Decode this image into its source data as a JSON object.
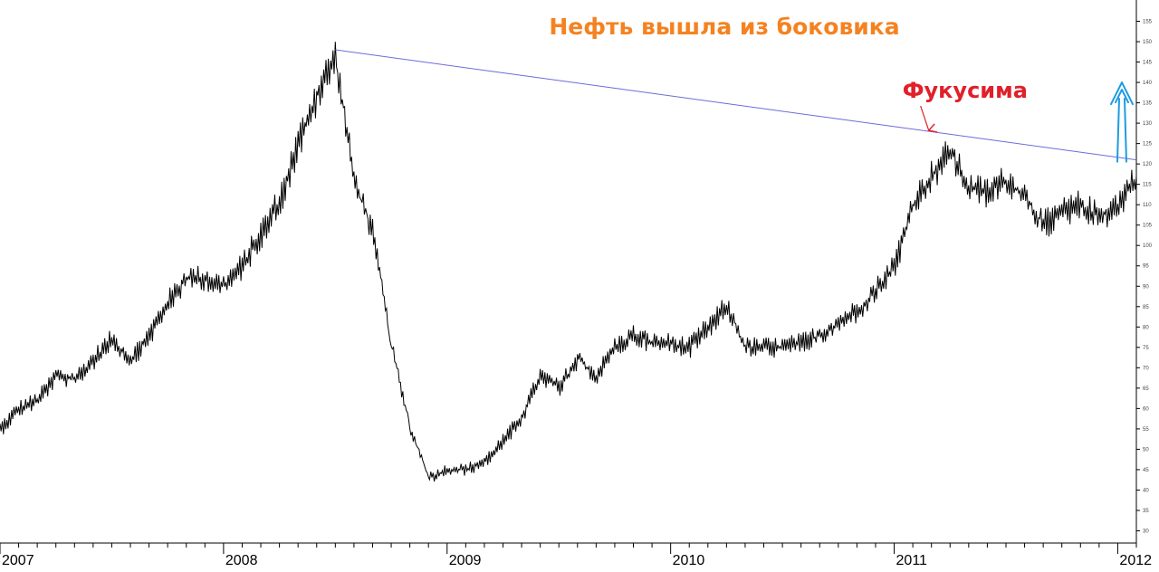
{
  "chart_data": {
    "type": "line",
    "title": "Нефть вышла из боковика",
    "annotations": [
      {
        "text": "Фукусима",
        "x": "2011-03",
        "y": 126
      }
    ],
    "xlabel": "",
    "ylabel": "",
    "x_tick_labels": [
      "2007",
      "2008",
      "2009",
      "2010",
      "2011",
      "2012"
    ],
    "y_tick_labels": [
      "30",
      "35",
      "40",
      "45",
      "50",
      "55",
      "60",
      "65",
      "70",
      "75",
      "80",
      "85",
      "90",
      "95",
      "100",
      "105",
      "110",
      "115",
      "120",
      "125",
      "130",
      "135",
      "140",
      "145",
      "150",
      "155"
    ],
    "xlim": [
      "2007-01",
      "2012-02"
    ],
    "ylim": [
      27,
      158
    ],
    "grid": false,
    "resistance_line": {
      "start": {
        "x": "2008-07",
        "y": 148
      },
      "end": {
        "x": "2012-02",
        "y": 121
      },
      "color": "#6b6bdc"
    },
    "breakout_arrow_color": "#1e9be0",
    "series": [
      {
        "color": "#000000",
        "x": [
          "2007-01",
          "2007-02",
          "2007-03",
          "2007-04",
          "2007-05",
          "2007-06",
          "2007-07",
          "2007-08",
          "2007-09",
          "2007-10",
          "2007-11",
          "2007-12",
          "2008-01",
          "2008-02",
          "2008-03",
          "2008-04",
          "2008-05",
          "2008-06",
          "2008-07",
          "2008-08",
          "2008-09",
          "2008-10",
          "2008-11",
          "2008-12",
          "2009-01",
          "2009-02",
          "2009-03",
          "2009-04",
          "2009-05",
          "2009-06",
          "2009-07",
          "2009-08",
          "2009-09",
          "2009-10",
          "2009-11",
          "2009-12",
          "2010-01",
          "2010-02",
          "2010-03",
          "2010-04",
          "2010-05",
          "2010-06",
          "2010-07",
          "2010-08",
          "2010-09",
          "2010-10",
          "2010-11",
          "2010-12",
          "2011-01",
          "2011-02",
          "2011-03",
          "2011-04",
          "2011-05",
          "2011-06",
          "2011-07",
          "2011-08",
          "2011-09",
          "2011-10",
          "2011-11",
          "2011-12",
          "2012-01",
          "2012-02"
        ],
        "values": [
          55,
          60,
          62,
          68,
          67,
          72,
          77,
          72,
          78,
          86,
          92,
          92,
          90,
          95,
          103,
          111,
          125,
          137,
          146,
          116,
          103,
          75,
          55,
          43,
          45,
          45,
          47,
          52,
          58,
          68,
          65,
          72,
          68,
          75,
          78,
          76,
          76,
          75,
          80,
          85,
          75,
          75,
          75,
          76,
          78,
          81,
          84,
          89,
          95,
          110,
          117,
          123,
          114,
          113,
          116,
          112,
          105,
          108,
          110,
          107,
          110,
          117
        ]
      }
    ]
  }
}
